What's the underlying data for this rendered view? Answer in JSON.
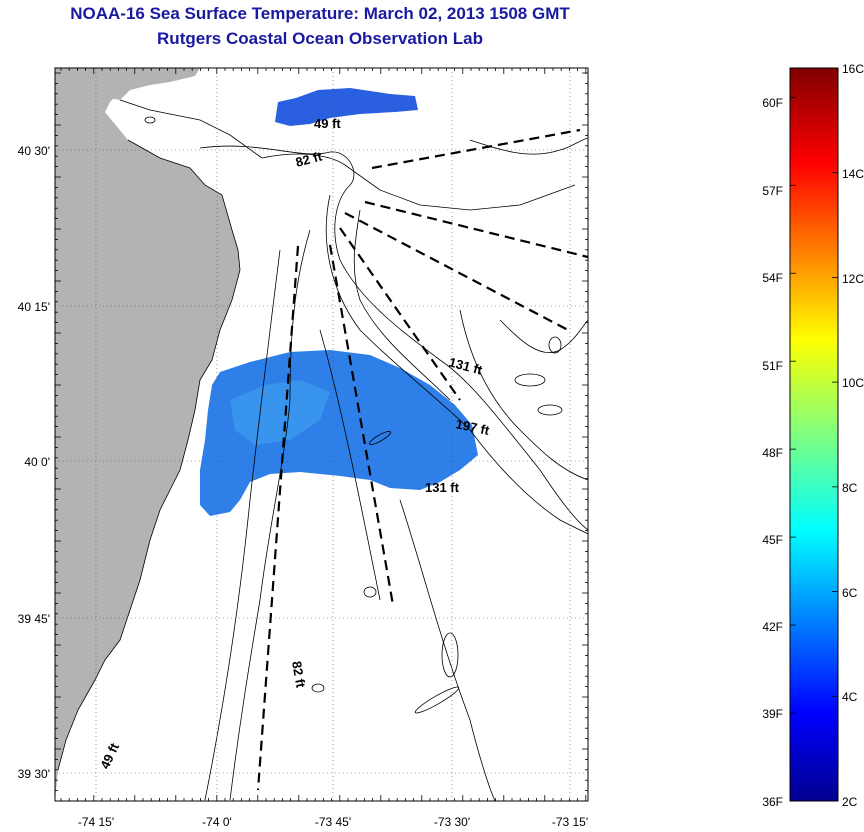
{
  "title": "NOAA-16 Sea Surface Temperature:  March 02, 2013 1508 GMT",
  "subtitle": "Rutgers Coastal Ocean Observation Lab",
  "map": {
    "lon_ticks": [
      "-74 15'",
      "-74 0'",
      "-73 45'",
      "-73 30'",
      "-73 15'"
    ],
    "lat_ticks": [
      "40 30'",
      "40 15'",
      "40 0'",
      "39 45'",
      "39 30'"
    ],
    "depth_labels": [
      "49 ft",
      "82 ft",
      "131 ft",
      "197 ft",
      "131 ft",
      "82 ft",
      "49 ft"
    ],
    "land_color": "#b3b3b3",
    "sst_color": "#2f7fe8"
  },
  "colorbar": {
    "fahrenheit": [
      "36F",
      "39F",
      "42F",
      "45F",
      "48F",
      "51F",
      "54F",
      "57F",
      "60F"
    ],
    "celsius": [
      "2C",
      "4C",
      "6C",
      "8C",
      "10C",
      "12C",
      "14C",
      "16C"
    ],
    "f_range": [
      36,
      61
    ],
    "c_range": [
      2,
      16
    ]
  }
}
